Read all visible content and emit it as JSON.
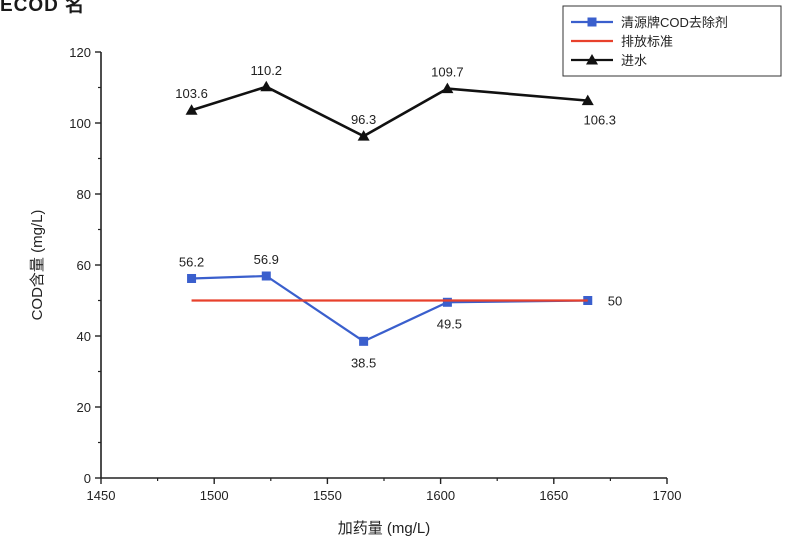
{
  "top_fragment": "ECOD 名",
  "chart_data": {
    "type": "line",
    "xlabel": "加药量 (mg/L)",
    "ylabel": "COD含量 (mg/L)",
    "xlim": [
      1450,
      1700
    ],
    "ylim": [
      0,
      120
    ],
    "xticks": [
      1450,
      1500,
      1550,
      1600,
      1650,
      1700
    ],
    "yticks": [
      0,
      20,
      40,
      60,
      80,
      100,
      120
    ],
    "grid": false,
    "legend_position": "top-right",
    "series": [
      {
        "name": "清源牌COD去除剂",
        "color": "#3a5fcd",
        "marker": "square",
        "x": [
          1490,
          1523,
          1566,
          1603,
          1665
        ],
        "y": [
          56.2,
          56.9,
          38.5,
          49.5,
          50
        ],
        "labels": [
          "56.2",
          "56.9",
          "38.5",
          "49.5",
          ""
        ]
      },
      {
        "name": "排放标准",
        "color": "#e8412c",
        "marker": "none",
        "x": [
          1490,
          1665
        ],
        "y": [
          50,
          50
        ],
        "labels": [
          "",
          "50"
        ]
      },
      {
        "name": "进水",
        "color": "#111111",
        "marker": "triangle",
        "x": [
          1490,
          1523,
          1566,
          1603,
          1665
        ],
        "y": [
          103.6,
          110.2,
          96.3,
          109.7,
          106.3
        ],
        "labels": [
          "103.6",
          "110.2",
          "96.3",
          "109.7",
          "106.3"
        ]
      }
    ]
  }
}
